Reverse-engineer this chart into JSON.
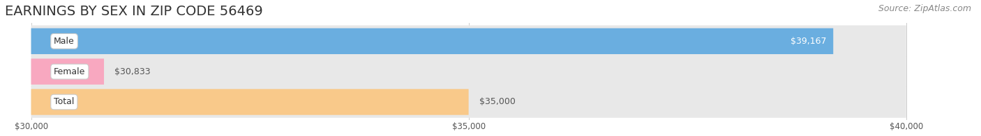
{
  "title": "EARNINGS BY SEX IN ZIP CODE 56469",
  "source": "Source: ZipAtlas.com",
  "categories": [
    "Male",
    "Female",
    "Total"
  ],
  "values": [
    39167,
    30833,
    35000
  ],
  "bar_colors": [
    "#6aaee0",
    "#f8a8c0",
    "#f9c98a"
  ],
  "labels": [
    "$39,167",
    "$30,833",
    "$35,000"
  ],
  "label_colors": [
    "white",
    "#555555",
    "#555555"
  ],
  "label_inside": [
    true,
    false,
    false
  ],
  "xlim_min": 30000,
  "xlim_max": 40000,
  "xticks": [
    30000,
    35000,
    40000
  ],
  "xticklabels": [
    "$30,000",
    "$35,000",
    "$40,000"
  ],
  "background_color": "#ffffff",
  "bar_bg_color": "#e8e8e8",
  "track_bg_color": "#f0f0f0",
  "title_fontsize": 14,
  "source_fontsize": 9,
  "label_fontsize": 9,
  "category_fontsize": 9,
  "bar_height": 0.52
}
